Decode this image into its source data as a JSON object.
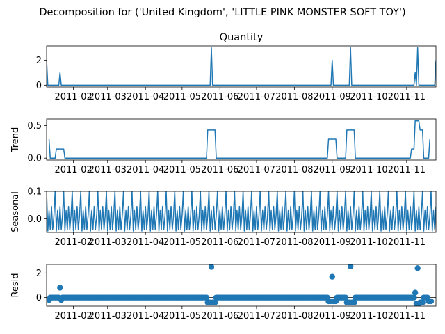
{
  "chart_data": {
    "type": "line",
    "suptitle": "Decomposition for ('United Kingdom', 'LITTLE PINK MONSTER SOFT TOY')",
    "line_color": "#1f77b4",
    "date_range": [
      "2011-01-10",
      "2011-11-25"
    ],
    "x_ticks": [
      "2011-02",
      "2011-03",
      "2011-04",
      "2011-05",
      "2011-06",
      "2011-07",
      "2011-08",
      "2011-09",
      "2011-10",
      "2011-11"
    ],
    "x_tick_dates": [
      "2011-02-01",
      "2011-03-01",
      "2011-04-01",
      "2011-05-01",
      "2011-06-01",
      "2011-07-01",
      "2011-08-01",
      "2011-09-01",
      "2011-10-01",
      "2011-11-01"
    ],
    "panels": [
      {
        "id": "quantity",
        "title": "Quantity",
        "ylabel": "",
        "kind": "line",
        "ylim": [
          -0.15,
          3.15
        ],
        "yticks": [
          0,
          2
        ],
        "ytick_labels": [
          "0",
          "2"
        ],
        "points": [
          [
            "2011-01-10",
            2
          ],
          [
            "2011-01-11",
            0
          ],
          [
            "2011-01-20",
            0
          ],
          [
            "2011-01-21",
            1
          ],
          [
            "2011-01-22",
            0
          ],
          [
            "2011-05-24",
            0
          ],
          [
            "2011-05-25",
            3
          ],
          [
            "2011-05-26",
            0
          ],
          [
            "2011-08-31",
            0
          ],
          [
            "2011-09-01",
            2
          ],
          [
            "2011-09-02",
            0
          ],
          [
            "2011-09-15",
            0
          ],
          [
            "2011-09-16",
            3
          ],
          [
            "2011-09-17",
            0
          ],
          [
            "2011-11-07",
            0
          ],
          [
            "2011-11-08",
            1
          ],
          [
            "2011-11-09",
            0
          ],
          [
            "2011-11-10",
            3
          ],
          [
            "2011-11-11",
            0
          ],
          [
            "2011-11-24",
            0
          ],
          [
            "2011-11-25",
            2
          ]
        ]
      },
      {
        "id": "trend",
        "title": "",
        "ylabel": "Trend",
        "kind": "line",
        "ylim": [
          -0.03,
          0.6
        ],
        "yticks": [
          0.0,
          0.5
        ],
        "ytick_labels": [
          "0.0",
          "0.5"
        ],
        "points": [
          [
            "2011-01-12",
            0.29
          ],
          [
            "2011-01-13",
            0.0
          ],
          [
            "2011-01-17",
            0.0
          ],
          [
            "2011-01-18",
            0.14
          ],
          [
            "2011-01-24",
            0.14
          ],
          [
            "2011-01-25",
            0.0
          ],
          [
            "2011-05-21",
            0.0
          ],
          [
            "2011-05-22",
            0.43
          ],
          [
            "2011-05-28",
            0.43
          ],
          [
            "2011-05-29",
            0.0
          ],
          [
            "2011-08-28",
            0.0
          ],
          [
            "2011-08-29",
            0.29
          ],
          [
            "2011-09-04",
            0.29
          ],
          [
            "2011-09-05",
            0.0
          ],
          [
            "2011-09-12",
            0.0
          ],
          [
            "2011-09-13",
            0.43
          ],
          [
            "2011-09-19",
            0.43
          ],
          [
            "2011-09-20",
            0.0
          ],
          [
            "2011-11-04",
            0.0
          ],
          [
            "2011-11-05",
            0.14
          ],
          [
            "2011-11-07",
            0.14
          ],
          [
            "2011-11-08",
            0.57
          ],
          [
            "2011-11-11",
            0.57
          ],
          [
            "2011-11-12",
            0.43
          ],
          [
            "2011-11-14",
            0.43
          ],
          [
            "2011-11-15",
            0.0
          ],
          [
            "2011-11-19",
            0.0
          ],
          [
            "2011-11-20",
            0.29
          ]
        ]
      },
      {
        "id": "seasonal",
        "title": "",
        "ylabel": "Seasonal",
        "kind": "periodic",
        "ylim": [
          -0.05,
          0.1
        ],
        "yticks": [
          0.0,
          0.1
        ],
        "ytick_labels": [
          "0.0",
          "0.1"
        ],
        "period_days": 7,
        "cycle": [
          0.1,
          -0.045,
          0.03,
          -0.04,
          0.045,
          -0.04,
          0.01
        ],
        "start": "2011-01-10",
        "end": "2011-11-25"
      },
      {
        "id": "resid",
        "title": "",
        "ylabel": "Resid",
        "kind": "scatter",
        "ylim": [
          -0.7,
          2.7
        ],
        "yticks": [
          0,
          2
        ],
        "ytick_labels": [
          "0",
          "2"
        ],
        "baseline": 0.0,
        "start": "2011-01-12",
        "end": "2011-11-21",
        "outliers": [
          [
            "2011-01-12",
            -0.2
          ],
          [
            "2011-01-21",
            0.8
          ],
          [
            "2011-01-22",
            -0.2
          ],
          [
            "2011-05-22",
            -0.4
          ],
          [
            "2011-05-23",
            -0.4
          ],
          [
            "2011-05-24",
            -0.4
          ],
          [
            "2011-05-25",
            2.5
          ],
          [
            "2011-05-26",
            -0.4
          ],
          [
            "2011-05-27",
            -0.4
          ],
          [
            "2011-05-28",
            -0.4
          ],
          [
            "2011-08-29",
            -0.3
          ],
          [
            "2011-08-30",
            -0.3
          ],
          [
            "2011-08-31",
            -0.3
          ],
          [
            "2011-09-01",
            1.7
          ],
          [
            "2011-09-02",
            -0.3
          ],
          [
            "2011-09-03",
            -0.3
          ],
          [
            "2011-09-04",
            -0.3
          ],
          [
            "2011-09-13",
            -0.4
          ],
          [
            "2011-09-14",
            -0.4
          ],
          [
            "2011-09-15",
            -0.4
          ],
          [
            "2011-09-16",
            2.55
          ],
          [
            "2011-09-17",
            -0.4
          ],
          [
            "2011-09-18",
            -0.4
          ],
          [
            "2011-09-19",
            -0.4
          ],
          [
            "2011-11-08",
            0.4
          ],
          [
            "2011-11-09",
            -0.5
          ],
          [
            "2011-11-10",
            2.4
          ],
          [
            "2011-11-11",
            -0.5
          ],
          [
            "2011-11-12",
            -0.4
          ],
          [
            "2011-11-13",
            -0.4
          ],
          [
            "2011-11-14",
            -0.4
          ],
          [
            "2011-11-19",
            -0.3
          ],
          [
            "2011-11-20",
            -0.3
          ],
          [
            "2011-11-21",
            -0.3
          ]
        ]
      }
    ]
  }
}
